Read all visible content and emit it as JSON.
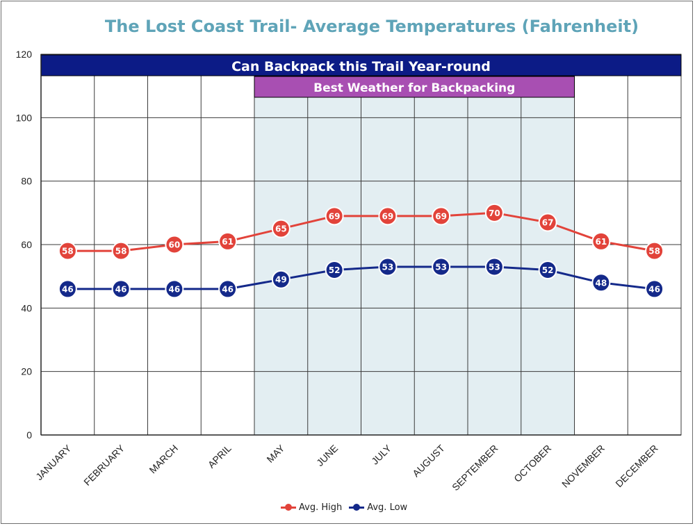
{
  "chart_data": {
    "type": "line",
    "title": "The Lost Coast Trail- Average Temperatures (Fahrenheit)",
    "xlabel": "",
    "ylabel": "",
    "ylim": [
      0,
      120
    ],
    "yticks": [
      0,
      20,
      40,
      60,
      80,
      100,
      120
    ],
    "grid": true,
    "legend_position": "bottom",
    "categories": [
      "JANUARY",
      "FEBRUARY",
      "MARCH",
      "APRIL",
      "MAY",
      "JUNE",
      "JULY",
      "AUGUST",
      "SEPTEMBER",
      "OCTOBER",
      "NOVEMBER",
      "DECEMBER"
    ],
    "series": [
      {
        "name": "Avg. High",
        "color": "#e2433a",
        "values": [
          58,
          58,
          60,
          61,
          65,
          69,
          69,
          69,
          70,
          67,
          61,
          58
        ]
      },
      {
        "name": "Avg. Low",
        "color": "#14298a",
        "values": [
          46,
          46,
          46,
          46,
          49,
          52,
          53,
          53,
          53,
          52,
          48,
          46
        ]
      }
    ],
    "annotations": [
      {
        "text": "Can Backpack this Trail Year-round",
        "from": "JANUARY",
        "to": "DECEMBER",
        "color": "#0c1b86"
      },
      {
        "text": "Best Weather for Backpacking",
        "from": "MAY",
        "to": "OCTOBER",
        "color": "#a84fb2",
        "shade": "#e3eef2"
      }
    ]
  }
}
